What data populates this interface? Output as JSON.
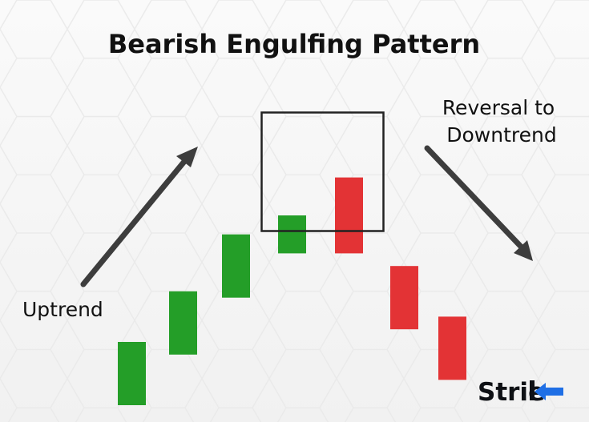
{
  "chart_data": {
    "type": "candlestick",
    "title": "Bearish Engulfing Pattern",
    "candles": [
      {
        "direction": "bullish",
        "open": 1.0,
        "close": 2.0
      },
      {
        "direction": "bullish",
        "open": 1.8,
        "close": 2.8
      },
      {
        "direction": "bullish",
        "open": 2.7,
        "close": 3.7
      },
      {
        "direction": "bullish",
        "open": 3.4,
        "close": 4.0
      },
      {
        "direction": "bearish",
        "open": 4.6,
        "close": 3.4
      },
      {
        "direction": "bearish",
        "open": 3.2,
        "close": 2.2
      },
      {
        "direction": "bearish",
        "open": 2.4,
        "close": 1.4
      }
    ],
    "highlighted_pattern": [
      3,
      4
    ],
    "annotations": [
      {
        "id": "uptrend",
        "text": "Uptrend"
      },
      {
        "id": "reversal",
        "lines": [
          "Reversal to",
          "Downtrend"
        ]
      }
    ],
    "colors": {
      "bullish": "#249e28",
      "bearish": "#e33335",
      "arrow": "#3d3d3d",
      "highlight_box": "#222222",
      "background": "#f7f7f7"
    }
  },
  "brand": {
    "prefix": "Stri",
    "suffix": "e",
    "accent_color": "#1f6fe5",
    "text_color": "#0f1115"
  }
}
